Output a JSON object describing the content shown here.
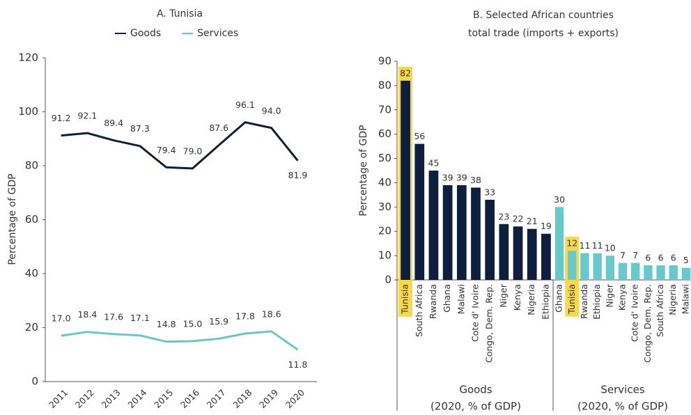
{
  "chart_data": [
    {
      "type": "line",
      "title": "A. Tunisia",
      "ylabel": "Percentage of GDP",
      "x": [
        2011,
        2012,
        2013,
        2014,
        2015,
        2016,
        2017,
        2018,
        2019,
        2020
      ],
      "series": [
        {
          "name": "Goods",
          "color": "#0d1f3c",
          "values": [
            91.2,
            92.1,
            89.4,
            87.3,
            79.4,
            79.0,
            87.6,
            96.1,
            94.0,
            81.9
          ],
          "value_labels": [
            "91.2",
            "92.1",
            "89.4",
            "87.3",
            "79.4",
            "79.0",
            "87.6",
            "96.1",
            "94.0",
            "81.9"
          ]
        },
        {
          "name": "Services",
          "color": "#66c9cc",
          "values": [
            17.0,
            18.4,
            17.6,
            17.1,
            14.8,
            15.0,
            15.9,
            17.8,
            18.6,
            11.8
          ],
          "value_labels": [
            "17.0",
            "18.4",
            "17.6",
            "17.1",
            "14.8",
            "15.0",
            "15.9",
            "17.8",
            "18.6",
            "11.8"
          ]
        }
      ],
      "ylim": [
        0,
        120
      ],
      "yticks": [
        0,
        20,
        40,
        60,
        80,
        100,
        120
      ],
      "legend": "top"
    },
    {
      "type": "bar",
      "title": "B. Selected African countries",
      "subtitle": "total trade (imports + exports)",
      "ylabel": "Percentage of GDP",
      "groups": [
        {
          "name": "Goods",
          "note": "(2020, % of GDP)",
          "color": "#0d1f3c",
          "categories": [
            "Tunisia",
            "South Africa",
            "Rwanda",
            "Ghana",
            "Malawi",
            "Cote d' Ivoire",
            "Congo, Dem. Rep.",
            "Niger",
            "Kenya",
            "Nigeria",
            "Ethiopia"
          ],
          "values": [
            82,
            56,
            45,
            39,
            39,
            38,
            33,
            23,
            22,
            21,
            19
          ]
        },
        {
          "name": "Services",
          "note": "(2020, % of GDP)",
          "color": "#66c9cc",
          "categories": [
            "Ghana",
            "Tunisia",
            "Rwanda",
            "Ethiopia",
            "Niger",
            "Kenya",
            "Cote d' Ivoire",
            "Congo, Dem. Rep.",
            "South Africa",
            "Nigeria",
            "Malawi"
          ],
          "values": [
            30,
            12,
            11,
            11,
            10,
            7,
            7,
            6,
            6,
            6,
            5
          ]
        }
      ],
      "highlight": "Tunisia",
      "highlight_color": "#f9d849",
      "ylim": [
        0,
        90
      ],
      "yticks": [
        0,
        10,
        20,
        30,
        40,
        50,
        60,
        70,
        80,
        90
      ]
    }
  ]
}
